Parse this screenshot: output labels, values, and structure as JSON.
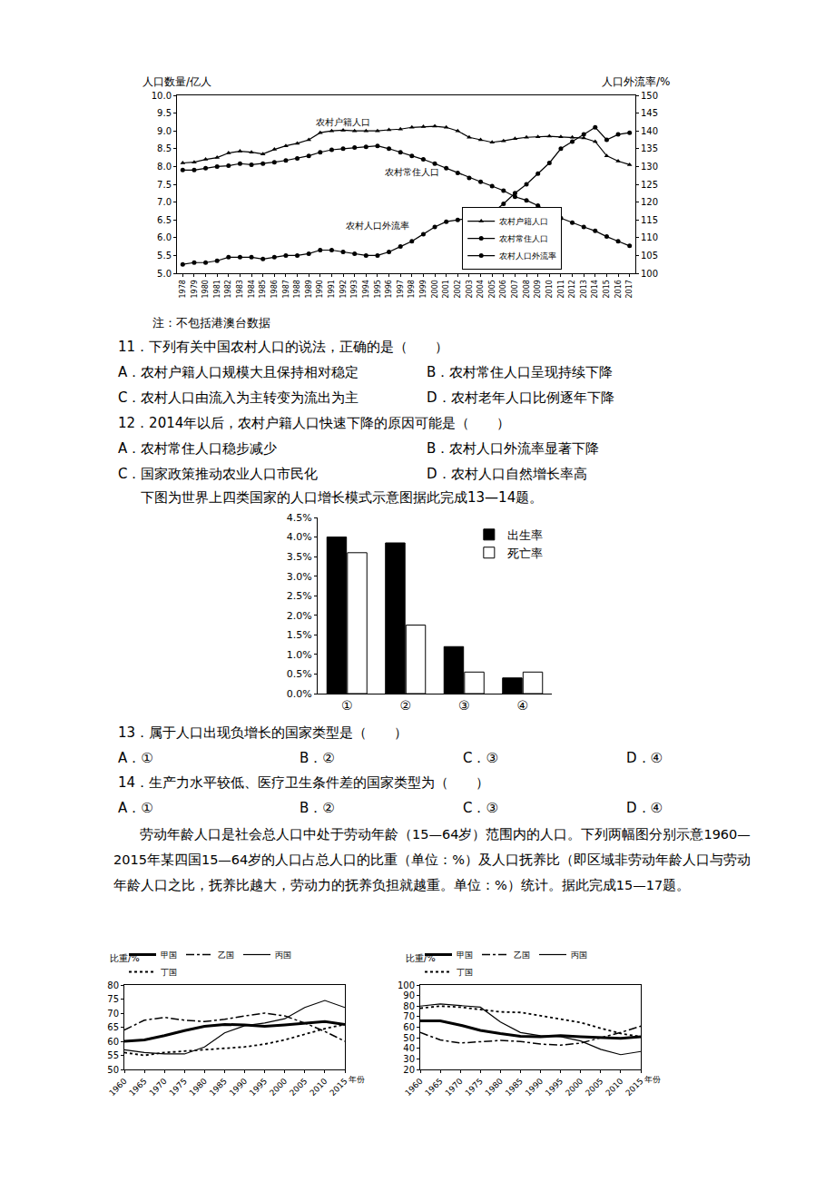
{
  "chart_data": [
    {
      "type": "line",
      "ylabel": "人口数量/亿人",
      "y2label": "人口外流率/%",
      "x": [
        1978,
        1979,
        1980,
        1981,
        1982,
        1983,
        1984,
        1985,
        1986,
        1987,
        1988,
        1989,
        1990,
        1991,
        1992,
        1993,
        1994,
        1995,
        1996,
        1997,
        1998,
        1999,
        2000,
        2001,
        2002,
        2003,
        2004,
        2005,
        2006,
        2007,
        2008,
        2009,
        2010,
        2011,
        2012,
        2013,
        2014,
        2015,
        2016,
        2017
      ],
      "xlim": [
        1977.5,
        2017.5
      ],
      "xticks": [
        1978,
        1979,
        1980,
        1981,
        1982,
        1983,
        1984,
        1985,
        1986,
        1987,
        1988,
        1989,
        1990,
        1991,
        1992,
        1993,
        1994,
        1995,
        1996,
        1997,
        1998,
        1999,
        2000,
        2001,
        2002,
        2003,
        2004,
        2005,
        2006,
        2007,
        2008,
        2009,
        2010,
        2011,
        2012,
        2013,
        2014,
        2015,
        2016,
        2017
      ],
      "ylim": [
        5,
        10
      ],
      "yticks": [
        {
          "value": 5,
          "label": "5.0"
        },
        {
          "value": 5.5,
          "label": "5.5"
        },
        {
          "value": 6,
          "label": "6.0"
        },
        {
          "value": 6.5,
          "label": "6.5"
        },
        {
          "value": 7,
          "label": "7.0"
        },
        {
          "value": 7.5,
          "label": "7.5"
        },
        {
          "value": 8,
          "label": "8.0"
        },
        {
          "value": 8.5,
          "label": "8.5"
        },
        {
          "value": 9,
          "label": "9.0"
        },
        {
          "value": 9.5,
          "label": "9.5"
        },
        {
          "value": 10,
          "label": "10.0"
        }
      ],
      "y2lim": [
        100,
        150
      ],
      "y2ticks": [
        100,
        105,
        110,
        115,
        120,
        125,
        130,
        135,
        140,
        145,
        150
      ],
      "grid": false,
      "legend": "bottom right",
      "series": [
        {
          "name": "农村户籍人口",
          "color": "#000000",
          "marker": "triangle-up",
          "line_style": "solid",
          "values": [
            8.1,
            8.12,
            8.2,
            8.25,
            8.38,
            8.43,
            8.4,
            8.35,
            8.48,
            8.58,
            8.65,
            8.75,
            8.95,
            9.0,
            9.02,
            9.0,
            9.0,
            9.0,
            9.03,
            9.05,
            9.1,
            9.12,
            9.13,
            9.1,
            9.0,
            8.82,
            8.75,
            8.68,
            8.72,
            8.78,
            8.82,
            8.83,
            8.85,
            8.83,
            8.82,
            8.8,
            8.7,
            8.3,
            8.15,
            8.05
          ]
        },
        {
          "name": "农村常住人口",
          "color": "#000000",
          "marker": "circle",
          "line_style": "solid",
          "values": [
            7.9,
            7.9,
            7.95,
            8.0,
            8.02,
            8.08,
            8.05,
            8.08,
            8.12,
            8.17,
            8.23,
            8.3,
            8.4,
            8.47,
            8.5,
            8.53,
            8.55,
            8.58,
            8.5,
            8.4,
            8.3,
            8.2,
            8.08,
            7.95,
            7.82,
            7.68,
            7.57,
            7.45,
            7.32,
            7.15,
            7.05,
            6.9,
            6.7,
            6.55,
            6.42,
            6.3,
            6.19,
            6.03,
            5.9,
            5.77
          ]
        },
        {
          "name": "农村人口外流率",
          "color": "#000000",
          "marker": "circle",
          "line_style": "solid",
          "axis": "y2",
          "values": [
            102.5,
            103,
            103,
            103.5,
            104.5,
            104.5,
            104.5,
            104,
            104.5,
            105,
            105,
            105.5,
            106.5,
            106.5,
            106,
            105.5,
            105,
            105,
            106,
            107.5,
            109,
            111,
            113,
            114.5,
            115,
            115.5,
            116,
            117,
            119.5,
            122.5,
            125,
            128,
            131,
            135,
            137,
            139,
            141,
            137.5,
            139,
            139.5
          ]
        }
      ],
      "annotations": [
        {
          "text": "农村户籍人口",
          "x": 1992,
          "y": 9.25
        },
        {
          "text": "农村常住人口",
          "x": 1998,
          "y": 7.85
        },
        {
          "text": "农村人口外流率",
          "x": 1995,
          "y": 6.35
        }
      ]
    },
    {
      "type": "bar",
      "categories": [
        "①",
        "②",
        "③",
        "④"
      ],
      "ylim": [
        0,
        4.5
      ],
      "yticks": [
        {
          "value": 0,
          "label": "0.0%"
        },
        {
          "value": 0.5,
          "label": "0.5%"
        },
        {
          "value": 1,
          "label": "1.0%"
        },
        {
          "value": 1.5,
          "label": "1.5%"
        },
        {
          "value": 2,
          "label": "2.0%"
        },
        {
          "value": 2.5,
          "label": "2.5%"
        },
        {
          "value": 3,
          "label": "3.0%"
        },
        {
          "value": 3.5,
          "label": "3.5%"
        },
        {
          "value": 4,
          "label": "4.0%"
        },
        {
          "value": 4.5,
          "label": "4.5%"
        }
      ],
      "grid": false,
      "legend": "top right",
      "series": [
        {
          "name": "出生率",
          "color": "#000000",
          "values": [
            4.0,
            3.85,
            1.2,
            0.4
          ]
        },
        {
          "name": "死亡率",
          "color": "#ffffff",
          "values": [
            3.6,
            1.75,
            0.55,
            0.55
          ]
        }
      ]
    },
    {
      "type": "line",
      "ylabel": "比重/%",
      "xlabel": "年份",
      "x": [
        1960,
        1965,
        1970,
        1975,
        1980,
        1985,
        1990,
        1995,
        2000,
        2005,
        2010,
        2015
      ],
      "xlim": [
        1960,
        2015
      ],
      "xticks": [
        1960,
        1965,
        1970,
        1975,
        1980,
        1985,
        1990,
        1995,
        2000,
        2005,
        2010,
        2015
      ],
      "ylim": [
        50,
        80
      ],
      "yticks": [
        50,
        55,
        60,
        65,
        70,
        75,
        80
      ],
      "grid": false,
      "legend": "top",
      "series": [
        {
          "name": "甲国",
          "color": "#000000",
          "line_style": "bold",
          "values": [
            60,
            60.5,
            62,
            63.8,
            65.3,
            66,
            65.8,
            65.3,
            65.8,
            66.5,
            67,
            66
          ]
        },
        {
          "name": "乙国",
          "color": "#000000",
          "line_style": "dashdot",
          "values": [
            64,
            67.5,
            68.5,
            67.5,
            67,
            67.8,
            69,
            70,
            69,
            66.5,
            63.5,
            60
          ]
        },
        {
          "name": "丙国",
          "color": "#000000",
          "line_style": "solid",
          "values": [
            57,
            56,
            55.5,
            55.5,
            58,
            63,
            65.5,
            66.5,
            68,
            72,
            74.5,
            72
          ]
        },
        {
          "name": "丁国",
          "color": "#000000",
          "line_style": "dot",
          "values": [
            56,
            55,
            56,
            56.5,
            57,
            57.5,
            58,
            59,
            60.5,
            62.5,
            64.5,
            66
          ]
        }
      ]
    },
    {
      "type": "line",
      "ylabel": "比重/%",
      "xlabel": "年份",
      "x": [
        1960,
        1965,
        1970,
        1975,
        1980,
        1985,
        1990,
        1995,
        2000,
        2005,
        2010,
        2015
      ],
      "xlim": [
        1960,
        2015
      ],
      "xticks": [
        1960,
        1965,
        1970,
        1975,
        1980,
        1985,
        1990,
        1995,
        2000,
        2005,
        2010,
        2015
      ],
      "ylim": [
        20,
        100
      ],
      "yticks": [
        20,
        30,
        40,
        50,
        60,
        70,
        80,
        90,
        100
      ],
      "grid": false,
      "legend": "top",
      "series": [
        {
          "name": "甲国",
          "color": "#000000",
          "line_style": "bold",
          "values": [
            66,
            66,
            62,
            57,
            54,
            51.5,
            51,
            52,
            51,
            50,
            49.5,
            51
          ]
        },
        {
          "name": "乙国",
          "color": "#000000",
          "line_style": "dashdot",
          "values": [
            55,
            48,
            45,
            46.5,
            47.5,
            46.5,
            44,
            43,
            45,
            50,
            55,
            61
          ]
        },
        {
          "name": "丙国",
          "color": "#000000",
          "line_style": "solid",
          "values": [
            80,
            82,
            80.5,
            79,
            65,
            55,
            52,
            51,
            47,
            39,
            34,
            37
          ]
        },
        {
          "name": "丁国",
          "color": "#000000",
          "line_style": "dot",
          "values": [
            78,
            80,
            79,
            77,
            74.5,
            74,
            71,
            68,
            64.5,
            59,
            54,
            51
          ]
        }
      ]
    }
  ],
  "document": {
    "chart_note": "注：不包括港澳台数据",
    "questions": [
      {
        "stem": "11．下列有关中国农村人口的说法，正确的是（　　）",
        "options": [
          "A．农村户籍人口规模大且保持相对稳定",
          "B．农村常住人口呈现持续下降",
          "C．农村人口由流入为主转变为流出为主",
          "D．农村老年人口比例逐年下降"
        ]
      },
      {
        "stem": "12．2014年以后，农村户籍人口快速下降的原因可能是（　　）",
        "options": [
          "A．农村常住人口稳步减少",
          "B．农村人口外流率显著下降",
          "C．国家政策推动农业人口市民化",
          "D．农村人口自然增长率高"
        ]
      },
      {
        "stem": "13．属于人口出现负增长的国家类型是（　　）",
        "options": [
          "A．①",
          "B．②",
          "C．③",
          "D．④"
        ]
      },
      {
        "stem": "14．生产力水平较低、医疗卫生条件差的国家类型为（　　）",
        "options": [
          "A．①",
          "B．②",
          "C．③",
          "D．④"
        ]
      }
    ],
    "intro_bar": "下图为世界上四类国家的人口增长模式示意图据此完成13—14题。",
    "intro_lines": "劳动年龄人口是社会总人口中处于劳动年龄（15—64岁）范围内的人口。下列两幅图分别示意1960—2015年某四国15—64岁的人口占总人口的比重（单位：%）及人口抚养比（即区域非劳动年龄人口与劳动年龄人口之比，抚养比越大，劳动力的抚养负担就越重。单位：%）统计。据此完成15—17题。"
  }
}
